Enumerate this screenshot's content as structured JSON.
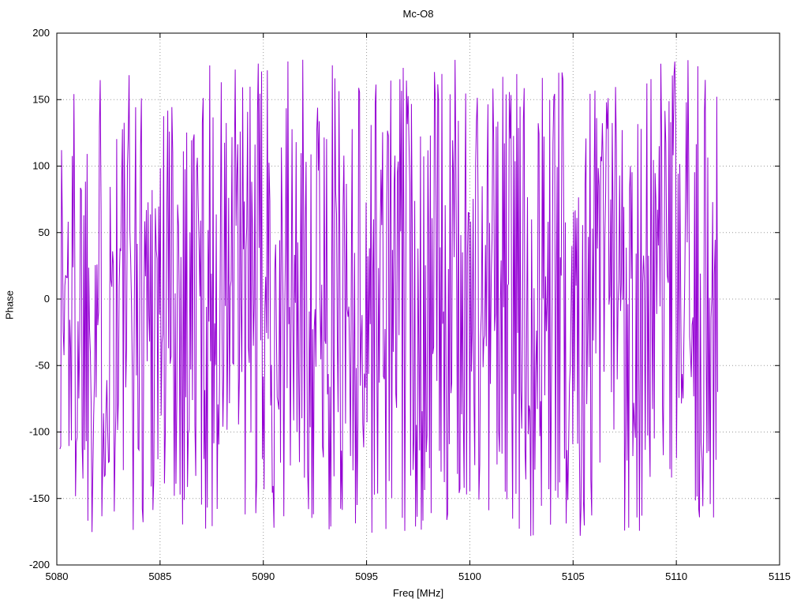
{
  "chart_data": {
    "type": "line",
    "title": "Mc-O8",
    "xlabel": "Freq [MHz]",
    "ylabel": "Phase",
    "xlim": [
      5080,
      5115
    ],
    "ylim": [
      -200,
      200
    ],
    "x_ticks": [
      5080,
      5085,
      5090,
      5095,
      5100,
      5105,
      5110,
      5115
    ],
    "y_ticks": [
      -200,
      -150,
      -100,
      -50,
      0,
      50,
      100,
      150,
      200
    ],
    "grid": "dotted",
    "grid_color": "#9a9a9a",
    "border_color": "#000000",
    "background": "#ffffff",
    "legend": "none",
    "series": [
      {
        "name": "phase",
        "color": "#9400d3",
        "description": "wrapped interferometric phase, uniformly scattered between -180 and +180 degrees across the band",
        "x_start": 5080.15,
        "x_end": 5112.0,
        "n_points": 800,
        "y_min": -179,
        "y_max": 180,
        "distribution": "uniform-random-phase-wrap",
        "seed": 1337
      }
    ]
  }
}
